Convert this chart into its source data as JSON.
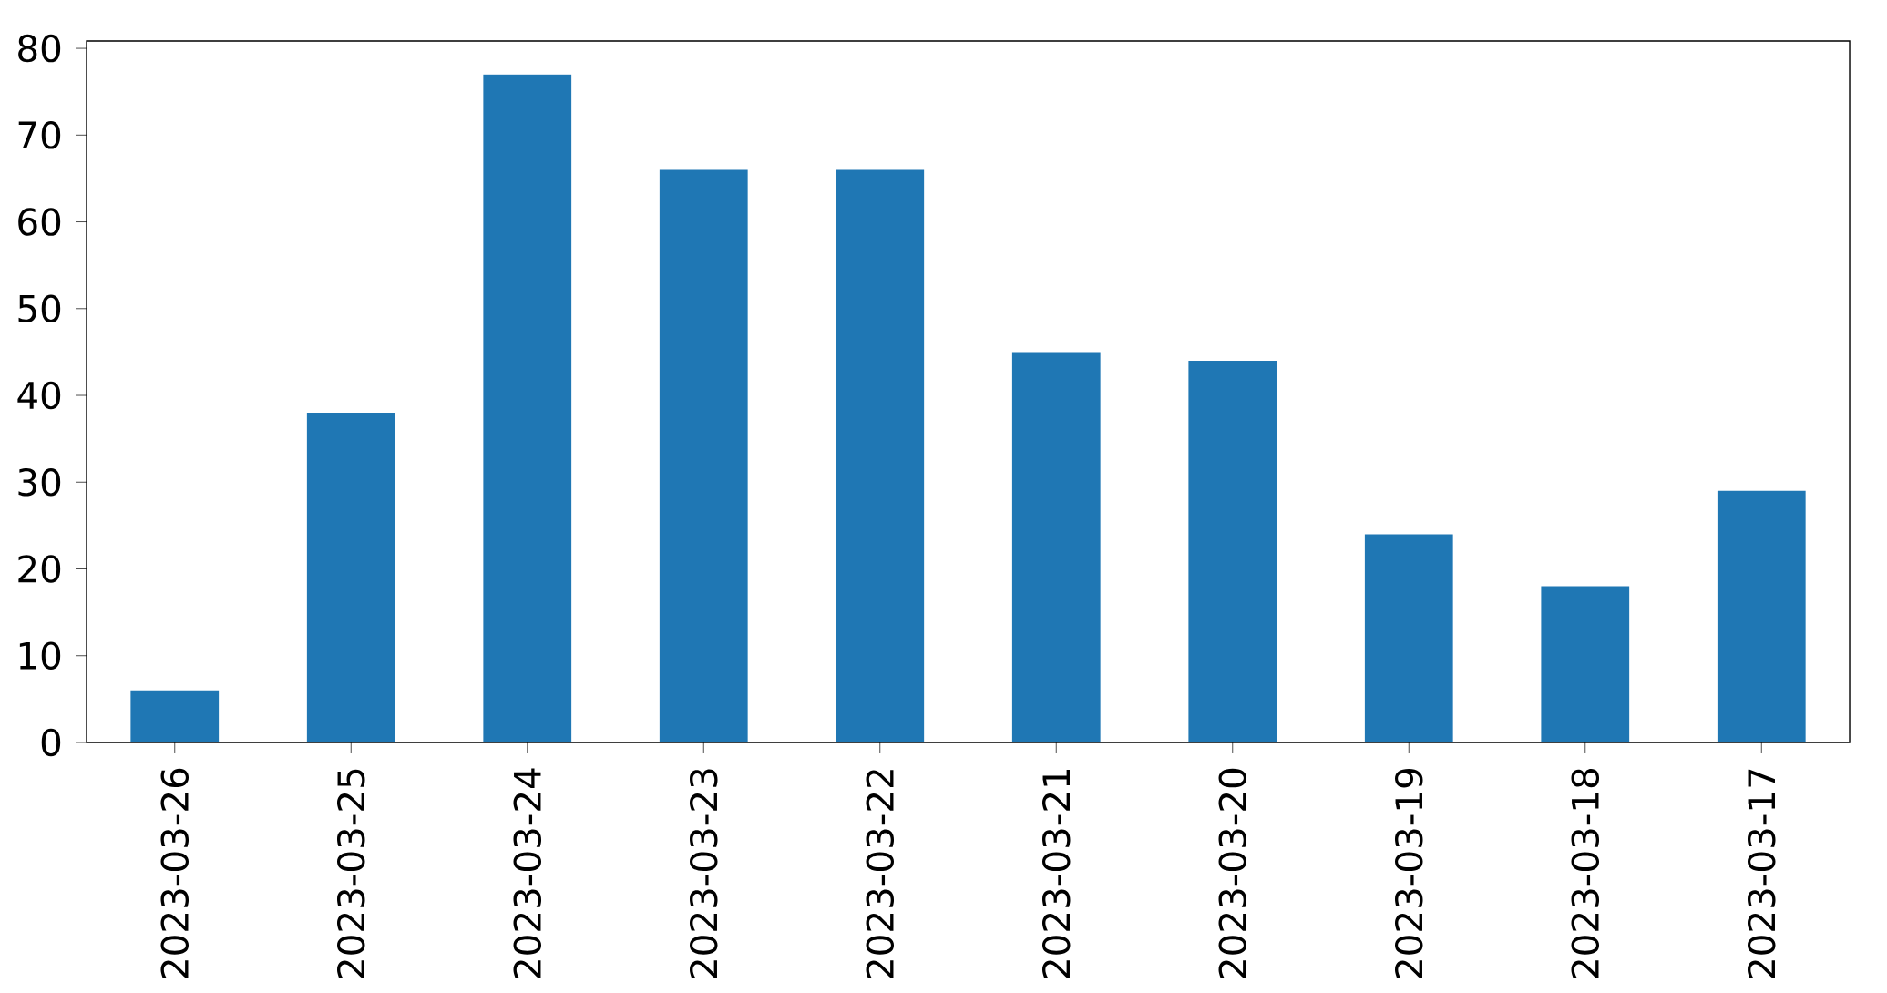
{
  "chart_data": {
    "type": "bar",
    "categories": [
      "2023-03-26",
      "2023-03-25",
      "2023-03-24",
      "2023-03-23",
      "2023-03-22",
      "2023-03-21",
      "2023-03-20",
      "2023-03-19",
      "2023-03-18",
      "2023-03-17"
    ],
    "values": [
      6,
      38,
      77,
      66,
      66,
      45,
      44,
      24,
      18,
      29
    ],
    "color": "#1f77b4",
    "ylim": [
      0,
      80.85
    ],
    "yticks": [
      0,
      10,
      20,
      30,
      40,
      50,
      60,
      70,
      80
    ]
  }
}
